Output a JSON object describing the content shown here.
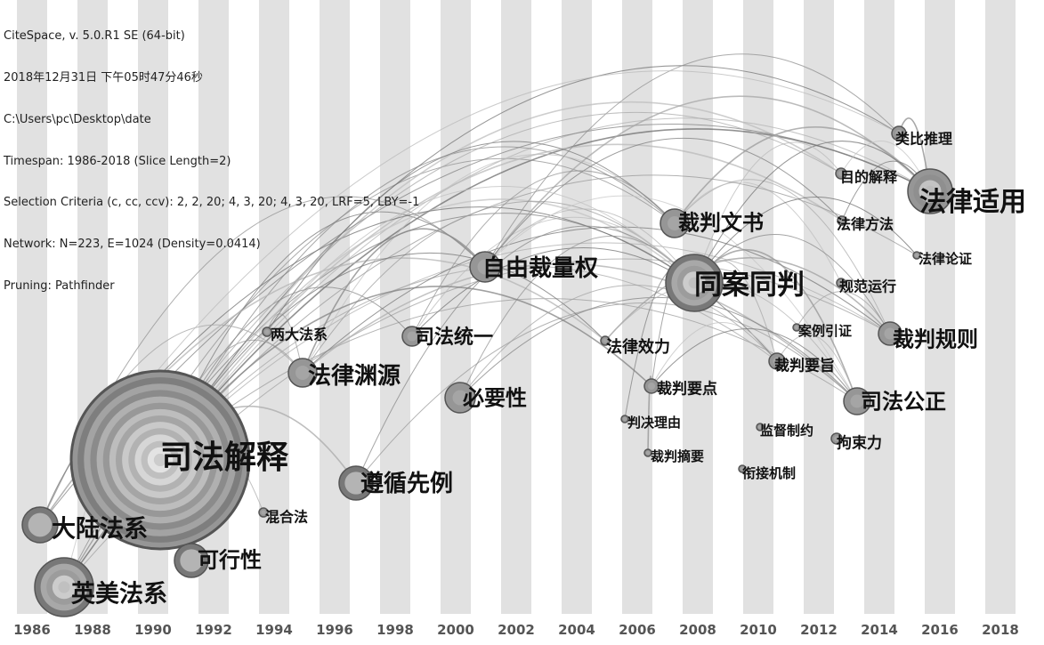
{
  "header": {
    "lines": [
      "CiteSpace, v. 5.0.R1 SE (64-bit)",
      "2018年12月31日 下午05时47分46秒",
      "C:\\Users\\pc\\Desktop\\date",
      "Timespan: 1986-2018 (Slice Length=2)",
      "Selection Criteria (c, cc, ccv): 2, 2, 20; 4, 3, 20; 4, 3, 20, LRF=5, LBY=-1",
      "Network: N=223, E=1024 (Density=0.0414)",
      "Pruning: Pathfinder"
    ]
  },
  "timeline": {
    "years": [
      "1986",
      "1988",
      "1990",
      "1992",
      "1994",
      "1996",
      "1998",
      "2000",
      "2002",
      "2004",
      "2006",
      "2008",
      "2010",
      "2012",
      "2014",
      "2016",
      "2018"
    ]
  },
  "colors": {
    "stripe": "#e1e1e1",
    "edge": "#8a8a8a",
    "node_ring_dark": "#555555",
    "node_fill": "#bdbdbd"
  },
  "nodes": [
    {
      "id": "n1",
      "label": "司法解释",
      "year": 1990,
      "size": "xl"
    },
    {
      "id": "n2",
      "label": "大陆法系",
      "year": 1987,
      "size": "s"
    },
    {
      "id": "n3",
      "label": "英美法系",
      "year": 1987,
      "size": "m"
    },
    {
      "id": "n4",
      "label": "可行性",
      "year": 1991,
      "size": "s"
    },
    {
      "id": "n5",
      "label": "混合法",
      "year": 1994,
      "size": "xs"
    },
    {
      "id": "n6",
      "label": "两大法系",
      "year": 1994,
      "size": "xs"
    },
    {
      "id": "n7",
      "label": "法律渊源",
      "year": 1995,
      "size": "s"
    },
    {
      "id": "n8",
      "label": "遵循先例",
      "year": 1997,
      "size": "s"
    },
    {
      "id": "n9",
      "label": "司法统一",
      "year": 1998,
      "size": "xs"
    },
    {
      "id": "n10",
      "label": "必要性",
      "year": 2000,
      "size": "s"
    },
    {
      "id": "n11",
      "label": "自由裁量权",
      "year": 2001,
      "size": "s"
    },
    {
      "id": "n12",
      "label": "法律效力",
      "year": 2006,
      "size": "xs"
    },
    {
      "id": "n13",
      "label": "判决理由",
      "year": 2006,
      "size": "xs"
    },
    {
      "id": "n14",
      "label": "裁判摘要",
      "year": 2006,
      "size": "xs"
    },
    {
      "id": "n15",
      "label": "裁判要点",
      "year": 2006,
      "size": "xs"
    },
    {
      "id": "n16",
      "label": "裁判文书",
      "year": 2007,
      "size": "s"
    },
    {
      "id": "n17",
      "label": "同案同判",
      "year": 2008,
      "size": "l"
    },
    {
      "id": "n18",
      "label": "监督制约",
      "year": 2011,
      "size": "xs"
    },
    {
      "id": "n19",
      "label": "衔接机制",
      "year": 2011,
      "size": "xs"
    },
    {
      "id": "n20",
      "label": "案例引证",
      "year": 2012,
      "size": "xs"
    },
    {
      "id": "n21",
      "label": "裁判要旨",
      "year": 2012,
      "size": "xs"
    },
    {
      "id": "n22",
      "label": "拘束力",
      "year": 2013,
      "size": "xs"
    },
    {
      "id": "n23",
      "label": "司法公正",
      "year": 2013,
      "size": "s"
    },
    {
      "id": "n24",
      "label": "目的解释",
      "year": 2013,
      "size": "xs"
    },
    {
      "id": "n25",
      "label": "规范运行",
      "year": 2013,
      "size": "xs"
    },
    {
      "id": "n26",
      "label": "法律方法",
      "year": 2014,
      "size": "xs"
    },
    {
      "id": "n27",
      "label": "裁判规则",
      "year": 2014,
      "size": "s"
    },
    {
      "id": "n28",
      "label": "类比推理",
      "year": 2015,
      "size": "xs"
    },
    {
      "id": "n29",
      "label": "法律适用",
      "year": 2015,
      "size": "m"
    },
    {
      "id": "n30",
      "label": "法律论证",
      "year": 2015,
      "size": "xs"
    }
  ]
}
